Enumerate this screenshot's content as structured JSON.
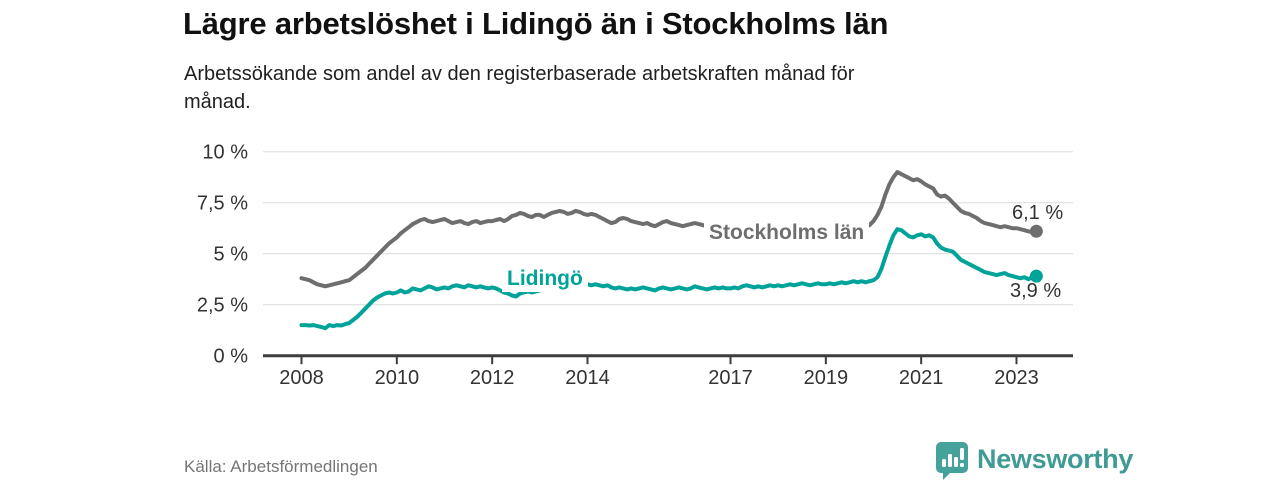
{
  "header": {
    "title": "Lägre arbetslöshet i Lidingö än i Stockholms län",
    "subtitle": "Arbetssökande som andel av den registerbaserade arbetskraften månad för\nmånad."
  },
  "footer": {
    "source": "Källa: Arbetsförmedlingen",
    "brand": "Newsworthy",
    "logo_icon": "bar-chart-speech-bubble-icon"
  },
  "colors": {
    "stockholm_gray": "#6e6e6e",
    "lidingo_teal": "#00a39a",
    "axis": "#3d3d3d",
    "grid": "#dcdcdc",
    "tick_text": "#333333",
    "brand_teal": "#3f9b94"
  },
  "chart_data": {
    "type": "line",
    "title": "Lägre arbetslöshet i Lidingö än i Stockholms län",
    "xlabel": "",
    "ylabel": "",
    "x_start_year": 2008,
    "x_step_years": 0.0833333,
    "xlim": [
      2007.2,
      2024.2
    ],
    "ylim": [
      0,
      10.5
    ],
    "grid": true,
    "legend_position": "inline-labels",
    "y_ticks": [
      {
        "value": 0,
        "label": "0 %"
      },
      {
        "value": 2.5,
        "label": "2,5 %"
      },
      {
        "value": 5,
        "label": "5 %"
      },
      {
        "value": 7.5,
        "label": "7,5 %"
      },
      {
        "value": 10,
        "label": "10 %"
      }
    ],
    "x_ticks": [
      {
        "year": 2008,
        "label": "2008"
      },
      {
        "year": 2010,
        "label": "2010"
      },
      {
        "year": 2012,
        "label": "2012"
      },
      {
        "year": 2014,
        "label": "2014"
      },
      {
        "year": 2017,
        "label": "2017"
      },
      {
        "year": 2019,
        "label": "2019"
      },
      {
        "year": 2021,
        "label": "2021"
      },
      {
        "year": 2023,
        "label": "2023"
      }
    ],
    "series": [
      {
        "name": "Stockholms län",
        "color": "#6e6e6e",
        "end_label": "6,1 %",
        "end_value": 6.1,
        "values": [
          3.8,
          3.75,
          3.7,
          3.6,
          3.5,
          3.45,
          3.4,
          3.45,
          3.5,
          3.55,
          3.6,
          3.65,
          3.7,
          3.85,
          4.0,
          4.15,
          4.3,
          4.5,
          4.7,
          4.9,
          5.1,
          5.3,
          5.5,
          5.65,
          5.8,
          6.0,
          6.15,
          6.3,
          6.45,
          6.55,
          6.65,
          6.7,
          6.6,
          6.55,
          6.6,
          6.65,
          6.7,
          6.6,
          6.5,
          6.55,
          6.6,
          6.5,
          6.45,
          6.55,
          6.6,
          6.5,
          6.55,
          6.6,
          6.6,
          6.65,
          6.7,
          6.6,
          6.7,
          6.85,
          6.9,
          7.0,
          6.95,
          6.85,
          6.8,
          6.9,
          6.9,
          6.8,
          6.9,
          7.0,
          7.05,
          7.1,
          7.05,
          6.95,
          7.0,
          7.1,
          7.05,
          6.95,
          6.9,
          6.95,
          6.9,
          6.8,
          6.7,
          6.6,
          6.5,
          6.55,
          6.7,
          6.75,
          6.7,
          6.6,
          6.55,
          6.5,
          6.45,
          6.5,
          6.4,
          6.35,
          6.45,
          6.55,
          6.6,
          6.5,
          6.45,
          6.4,
          6.35,
          6.4,
          6.45,
          6.5,
          6.45,
          6.4,
          6.35,
          6.3,
          6.35,
          6.3,
          6.25,
          6.2,
          6.25,
          6.2,
          6.15,
          6.2,
          6.25,
          6.2,
          6.15,
          6.1,
          6.15,
          6.2,
          6.15,
          6.1,
          6.1,
          6.05,
          6.0,
          6.05,
          6.1,
          6.05,
          6.0,
          6.05,
          6.1,
          6.05,
          6.0,
          6.05,
          6.1,
          6.05,
          6.0,
          6.05,
          6.1,
          6.15,
          6.1,
          6.15,
          6.2,
          6.25,
          6.3,
          6.4,
          6.6,
          6.9,
          7.3,
          7.9,
          8.4,
          8.75,
          9.0,
          8.9,
          8.8,
          8.7,
          8.6,
          8.65,
          8.55,
          8.4,
          8.3,
          8.2,
          7.9,
          7.8,
          7.85,
          7.7,
          7.5,
          7.3,
          7.1,
          7.0,
          6.95,
          6.85,
          6.75,
          6.6,
          6.5,
          6.45,
          6.4,
          6.35,
          6.3,
          6.35,
          6.3,
          6.25,
          6.25,
          6.2,
          6.15,
          6.1,
          6.05,
          6.1
        ]
      },
      {
        "name": "Lidingö",
        "color": "#00a39a",
        "end_label": "3,9 %",
        "end_value": 3.9,
        "values": [
          1.5,
          1.5,
          1.48,
          1.5,
          1.45,
          1.4,
          1.35,
          1.5,
          1.45,
          1.5,
          1.48,
          1.55,
          1.6,
          1.75,
          1.9,
          2.1,
          2.3,
          2.5,
          2.7,
          2.85,
          2.95,
          3.05,
          3.1,
          3.05,
          3.1,
          3.2,
          3.1,
          3.15,
          3.3,
          3.25,
          3.2,
          3.3,
          3.4,
          3.35,
          3.25,
          3.3,
          3.35,
          3.3,
          3.4,
          3.45,
          3.4,
          3.35,
          3.45,
          3.4,
          3.35,
          3.4,
          3.35,
          3.3,
          3.35,
          3.3,
          3.2,
          3.1,
          3.05,
          2.95,
          2.9,
          3.05,
          3.1,
          3.15,
          3.1,
          3.15,
          3.2,
          3.3,
          3.25,
          3.35,
          3.3,
          3.35,
          3.3,
          3.25,
          3.35,
          3.45,
          3.5,
          3.45,
          3.5,
          3.45,
          3.5,
          3.45,
          3.4,
          3.45,
          3.35,
          3.3,
          3.35,
          3.3,
          3.25,
          3.3,
          3.25,
          3.3,
          3.35,
          3.3,
          3.25,
          3.2,
          3.3,
          3.35,
          3.3,
          3.25,
          3.3,
          3.35,
          3.3,
          3.25,
          3.3,
          3.4,
          3.35,
          3.3,
          3.25,
          3.3,
          3.35,
          3.3,
          3.35,
          3.3,
          3.3,
          3.35,
          3.3,
          3.4,
          3.45,
          3.4,
          3.35,
          3.4,
          3.35,
          3.4,
          3.45,
          3.4,
          3.45,
          3.4,
          3.45,
          3.5,
          3.45,
          3.5,
          3.55,
          3.5,
          3.45,
          3.5,
          3.55,
          3.5,
          3.5,
          3.55,
          3.5,
          3.55,
          3.6,
          3.55,
          3.6,
          3.65,
          3.6,
          3.65,
          3.6,
          3.65,
          3.7,
          3.85,
          4.25,
          4.85,
          5.4,
          5.9,
          6.2,
          6.15,
          6.0,
          5.85,
          5.8,
          5.9,
          5.95,
          5.85,
          5.9,
          5.8,
          5.5,
          5.3,
          5.2,
          5.15,
          5.1,
          4.9,
          4.7,
          4.6,
          4.5,
          4.4,
          4.3,
          4.2,
          4.1,
          4.05,
          4.0,
          3.95,
          4.0,
          4.05,
          3.95,
          3.9,
          3.85,
          3.8,
          3.85,
          3.75,
          3.85,
          3.9
        ]
      }
    ]
  }
}
